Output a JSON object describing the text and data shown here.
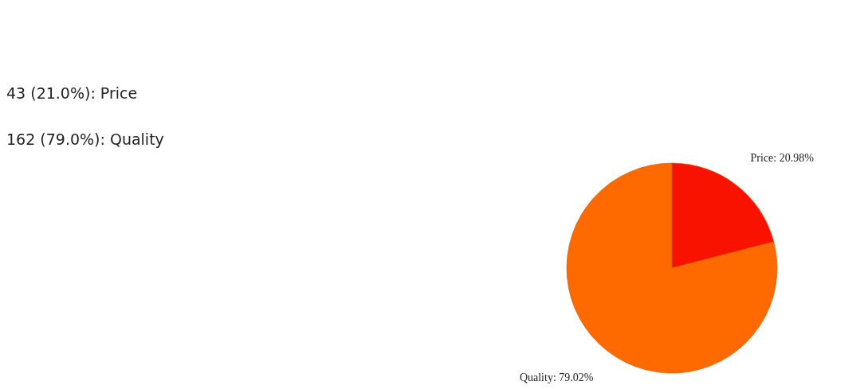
{
  "chart_data": {
    "type": "pie",
    "categories": [
      "Price",
      "Quality"
    ],
    "values": [
      20.98,
      79.02
    ],
    "colors": [
      "#fa1200",
      "#ff6a00"
    ],
    "value_labels": [
      "20.98%",
      "79.02%"
    ],
    "annotations": [
      "43 (21.0%): Price",
      "162 (79.0%): Quality"
    ]
  }
}
